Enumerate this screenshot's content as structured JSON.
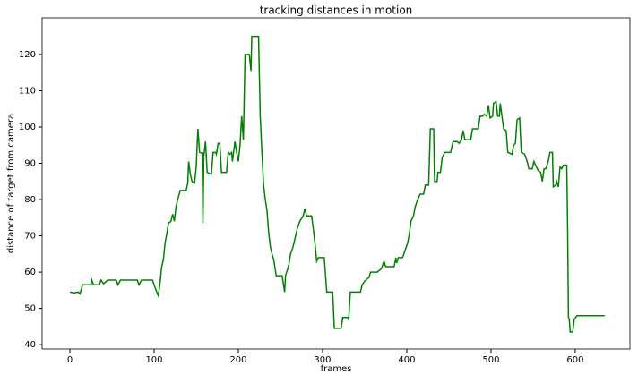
{
  "chart_data": {
    "type": "line",
    "title": "tracking distances in motion",
    "x_label": "frames",
    "y_label": "distance of target from camera",
    "x": [
      0,
      5,
      10,
      12,
      15,
      25,
      26,
      28,
      35,
      37,
      40,
      45,
      55,
      57,
      60,
      80,
      82,
      85,
      98,
      100,
      104,
      105,
      107,
      109,
      111,
      113,
      115,
      117,
      120,
      122,
      124,
      126,
      128,
      131,
      138,
      140,
      141,
      143,
      145,
      148,
      150,
      152,
      154,
      157,
      158,
      159,
      161,
      163,
      168,
      170,
      173,
      174,
      176,
      178,
      180,
      186,
      188,
      190,
      192,
      193,
      196,
      198,
      200,
      202,
      204,
      206,
      208,
      213,
      215,
      216,
      224,
      226,
      228,
      230,
      232,
      234,
      236,
      238,
      240,
      242,
      245,
      252,
      255,
      256,
      258,
      260,
      262,
      265,
      268,
      270,
      273,
      277,
      279,
      281,
      287,
      289,
      291,
      293,
      295,
      302,
      305,
      312,
      314,
      322,
      324,
      330,
      331,
      333,
      345,
      347,
      350,
      355,
      357,
      365,
      370,
      373,
      375,
      385,
      387,
      388,
      390,
      395,
      398,
      401,
      403,
      405,
      408,
      410,
      413,
      416,
      420,
      422,
      426,
      428,
      432,
      433,
      436,
      437,
      440,
      442,
      445,
      452,
      455,
      460,
      462,
      465,
      467,
      469,
      476,
      478,
      485,
      487,
      490,
      492,
      495,
      497,
      499,
      502,
      503,
      506,
      508,
      510,
      511,
      513,
      515,
      518,
      520,
      525,
      527,
      529,
      531,
      534,
      536,
      540,
      543,
      545,
      549,
      551,
      553,
      556,
      559,
      561,
      563,
      565,
      568,
      570,
      573,
      574,
      577,
      578,
      580,
      582,
      584,
      586,
      590,
      591,
      592,
      593,
      594,
      597,
      599,
      602,
      610,
      635
    ],
    "series": [
      {
        "name": "distance",
        "color": "#008000",
        "values": [
          54.5,
          54.3,
          54.5,
          54,
          56.5,
          56.5,
          57.8,
          56.5,
          56.5,
          57.8,
          56.8,
          57.8,
          57.8,
          56.5,
          57.8,
          57.8,
          56.5,
          57.8,
          57.8,
          56.5,
          54,
          53.5,
          57,
          61.5,
          63.5,
          68,
          70.5,
          73.5,
          74,
          76,
          74,
          78,
          80,
          82.5,
          82.5,
          84.5,
          90.5,
          87,
          85,
          84.5,
          89,
          99.5,
          93,
          92.8,
          73.5,
          92,
          96,
          87.5,
          87,
          93,
          93,
          92.5,
          95.5,
          95.5,
          87.5,
          87.5,
          93,
          92.5,
          93,
          90.5,
          96,
          93,
          90.5,
          95,
          103,
          96.5,
          120,
          120,
          115.5,
          125,
          125,
          103,
          93,
          84,
          80,
          77,
          71,
          67,
          65,
          63.5,
          59,
          59,
          54.5,
          59,
          60.5,
          62,
          65,
          67,
          70,
          72,
          74,
          75.5,
          77.5,
          75.5,
          75.5,
          72,
          68,
          63,
          64,
          64,
          54.5,
          54.5,
          44.5,
          44.5,
          47.5,
          47.5,
          46.8,
          54.5,
          54.5,
          56.5,
          57.5,
          58.5,
          60,
          60,
          61,
          63,
          61.5,
          61.5,
          64,
          62.5,
          64,
          64,
          66,
          68,
          70.5,
          74,
          75.5,
          78,
          80,
          81.5,
          81.5,
          84,
          84,
          99.5,
          99.5,
          85,
          85,
          87.5,
          87.5,
          91.5,
          93,
          93,
          96,
          96,
          95.5,
          96.5,
          99,
          96.5,
          96.5,
          99.5,
          99.5,
          103,
          103,
          103.5,
          103,
          106,
          102.5,
          103,
          106.5,
          107,
          103,
          103,
          106.5,
          103,
          99.5,
          99,
          93,
          92.5,
          95,
          95.5,
          102,
          102.5,
          93,
          92.5,
          90.5,
          88.5,
          88.5,
          90.5,
          89.5,
          88,
          87.5,
          85,
          88.5,
          88.5,
          90.5,
          93,
          93,
          83.5,
          84,
          85,
          83.5,
          89,
          88.5,
          89.5,
          89.5,
          72,
          47.5,
          47,
          43.5,
          43.5,
          47,
          48,
          48,
          48
        ]
      }
    ],
    "xlim": [
      -33,
      665
    ],
    "ylim": [
      38.8,
      130.1
    ],
    "xticks": [
      0,
      100,
      200,
      300,
      400,
      500,
      600
    ],
    "yticks": [
      40,
      50,
      60,
      70,
      80,
      90,
      100,
      110,
      120
    ]
  }
}
